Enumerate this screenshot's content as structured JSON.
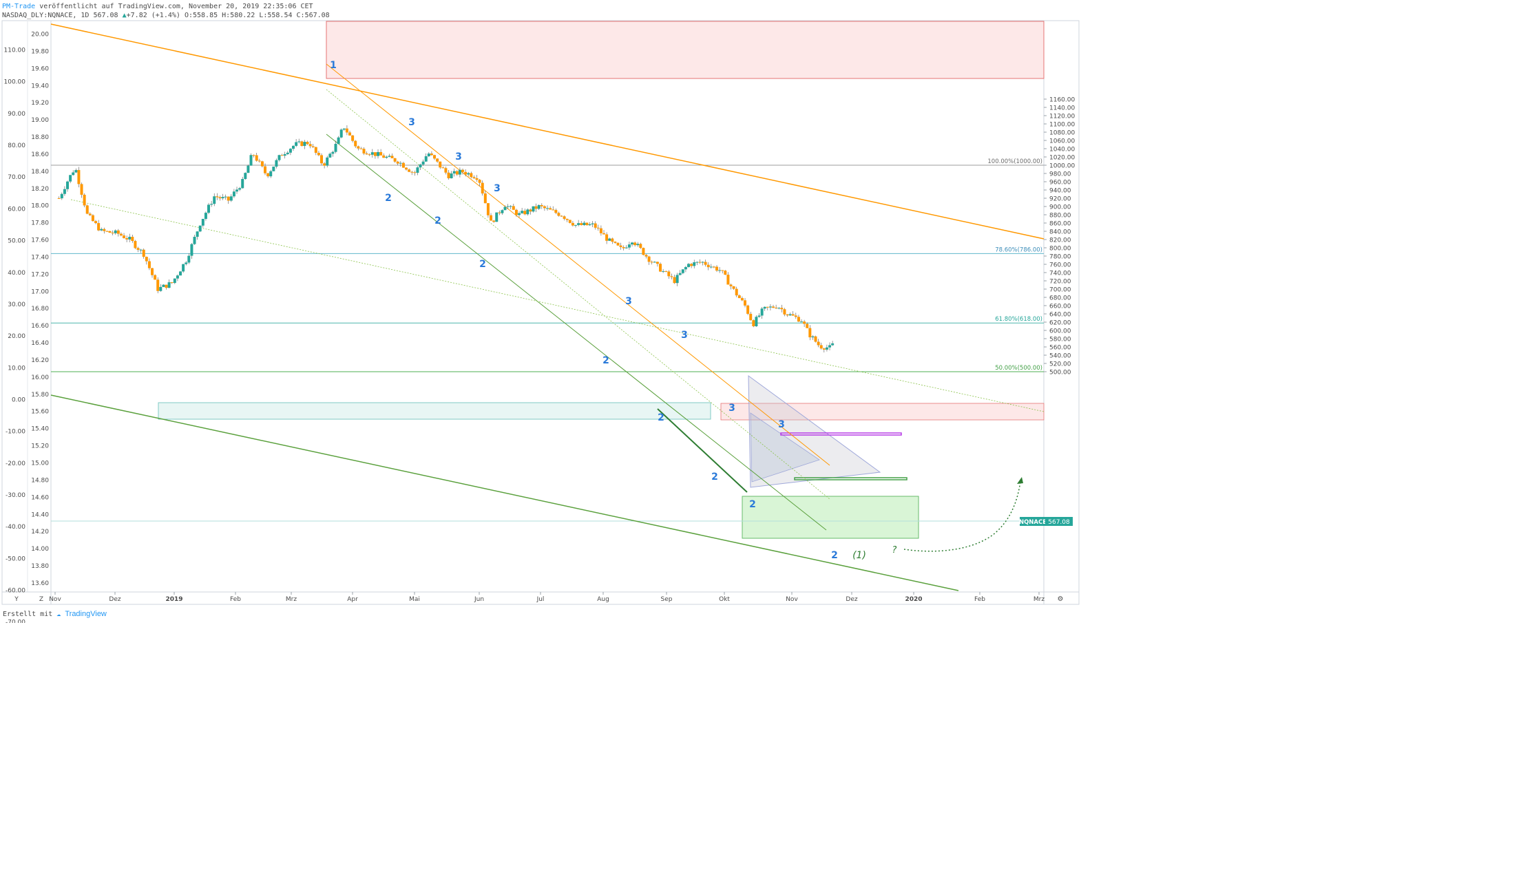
{
  "header": {
    "author": "PM-Trade",
    "published": "veröffentlicht auf TradingView.com, November 20, 2019 22:35:06 CET",
    "symbol_line": "NASDAQ_DLY:NQNACE, 1D 567.08",
    "change": "+7.82 (+1.4%)",
    "ohlc": "O:558.85 H:580.22 L:558.54 C:567.08"
  },
  "footer": {
    "created_with": "Erstellt mit",
    "brand": "TradingView"
  },
  "colors": {
    "bull": "#26a69a",
    "bear": "#ff9800",
    "channel_orange": "#ff9800",
    "channel_green": "#5aa03c",
    "wave_label": "#2979d9",
    "red_zone": "#e57373",
    "green_zone": "#66bb6a",
    "teal_zone": "#80cbc4",
    "fib_line": "#4db6ac",
    "purple": "#b73be6"
  },
  "chart_data": {
    "type": "candlestick",
    "symbol": "NQNACE",
    "last_price_label": "567.08",
    "x_labels": [
      "Nov",
      "Dez",
      "2019",
      "Feb",
      "Mrz",
      "Apr",
      "Mai",
      "Jun",
      "Jul",
      "Aug",
      "Sep",
      "Okt",
      "Nov",
      "Dez",
      "2020",
      "Feb",
      "Mrz"
    ],
    "y_right": {
      "ticks": [
        "1160.00",
        "1140.00",
        "1120.00",
        "1100.00",
        "1080.00",
        "1060.00",
        "1040.00",
        "1020.00",
        "1000.00",
        "980.00",
        "960.00",
        "940.00",
        "920.00",
        "900.00",
        "880.00",
        "860.00",
        "840.00",
        "820.00",
        "800.00",
        "780.00",
        "760.00",
        "740.00",
        "720.00",
        "700.00",
        "680.00",
        "660.00",
        "640.00",
        "620.00",
        "600.00",
        "580.00",
        "560.00",
        "540.00",
        "520.00",
        "500.00"
      ],
      "range": [
        485,
        1170
      ]
    },
    "y_left_outer": {
      "ticks": [
        "110.00",
        "100.00",
        "90.00",
        "80.00",
        "70.00",
        "60.00",
        "50.00",
        "40.00",
        "30.00",
        "20.00",
        "10.00",
        "0.00",
        "-10.00",
        "-20.00",
        "-30.00",
        "-40.00",
        "-50.00",
        "-60.00",
        "-70.00"
      ]
    },
    "y_left_inner": {
      "ticks": [
        "20.00",
        "19.80",
        "19.60",
        "19.40",
        "19.20",
        "19.00",
        "18.80",
        "18.60",
        "18.40",
        "18.20",
        "18.00",
        "17.80",
        "17.60",
        "17.40",
        "17.20",
        "17.00",
        "16.80",
        "16.60",
        "16.40",
        "16.20",
        "16.00",
        "15.80",
        "15.60",
        "15.40",
        "15.20",
        "15.00",
        "14.80",
        "14.60",
        "14.40",
        "14.20",
        "14.00",
        "13.80",
        "13.60"
      ]
    },
    "fib_levels": [
      {
        "label": "100.00%(1000.00)",
        "value": 1000
      },
      {
        "label": "78.60%(786.00)",
        "value": 786
      },
      {
        "label": "61.80%(618.00)",
        "value": 618
      },
      {
        "label": "50.00%(500.00)",
        "value": 500
      }
    ],
    "wave_labels": [
      "1",
      "3",
      "3",
      "3",
      "3",
      "3",
      "3",
      "3",
      "2",
      "2",
      "2",
      "2",
      "2",
      "2",
      "2",
      "2",
      "2"
    ],
    "annotations": [
      "(1)",
      "?"
    ],
    "close_path": [
      {
        "date": "2018-11-01",
        "close": 920
      },
      {
        "date": "2018-11-05",
        "close": 960
      },
      {
        "date": "2018-11-09",
        "close": 995
      },
      {
        "date": "2018-11-15",
        "close": 880
      },
      {
        "date": "2018-11-22",
        "close": 840
      },
      {
        "date": "2018-11-30",
        "close": 835
      },
      {
        "date": "2018-12-06",
        "close": 820
      },
      {
        "date": "2018-12-13",
        "close": 785
      },
      {
        "date": "2018-12-20",
        "close": 700
      },
      {
        "date": "2018-12-27",
        "close": 715
      },
      {
        "date": "2019-01-03",
        "close": 770
      },
      {
        "date": "2019-01-10",
        "close": 860
      },
      {
        "date": "2019-01-17",
        "close": 925
      },
      {
        "date": "2019-01-24",
        "close": 915
      },
      {
        "date": "2019-01-31",
        "close": 960
      },
      {
        "date": "2019-02-05",
        "close": 1030
      },
      {
        "date": "2019-02-12",
        "close": 975
      },
      {
        "date": "2019-02-19",
        "close": 1025
      },
      {
        "date": "2019-02-26",
        "close": 1050
      },
      {
        "date": "2019-03-05",
        "close": 1055
      },
      {
        "date": "2019-03-12",
        "close": 1000
      },
      {
        "date": "2019-03-19",
        "close": 1055
      },
      {
        "date": "2019-03-22",
        "close": 1095
      },
      {
        "date": "2019-03-29",
        "close": 1040
      },
      {
        "date": "2019-04-08",
        "close": 1025
      },
      {
        "date": "2019-04-18",
        "close": 1010
      },
      {
        "date": "2019-04-26",
        "close": 980
      },
      {
        "date": "2019-05-03",
        "close": 1030
      },
      {
        "date": "2019-05-13",
        "close": 975
      },
      {
        "date": "2019-05-20",
        "close": 985
      },
      {
        "date": "2019-05-28",
        "close": 970
      },
      {
        "date": "2019-06-03",
        "close": 860
      },
      {
        "date": "2019-06-10",
        "close": 905
      },
      {
        "date": "2019-06-17",
        "close": 880
      },
      {
        "date": "2019-06-27",
        "close": 900
      },
      {
        "date": "2019-07-08",
        "close": 880
      },
      {
        "date": "2019-07-15",
        "close": 855
      },
      {
        "date": "2019-07-24",
        "close": 855
      },
      {
        "date": "2019-08-01",
        "close": 815
      },
      {
        "date": "2019-08-07",
        "close": 795
      },
      {
        "date": "2019-08-12",
        "close": 820
      },
      {
        "date": "2019-08-20",
        "close": 775
      },
      {
        "date": "2019-08-28",
        "close": 740
      },
      {
        "date": "2019-09-02",
        "close": 720
      },
      {
        "date": "2019-09-09",
        "close": 760
      },
      {
        "date": "2019-09-16",
        "close": 765
      },
      {
        "date": "2019-09-25",
        "close": 745
      },
      {
        "date": "2019-10-01",
        "close": 700
      },
      {
        "date": "2019-10-07",
        "close": 660
      },
      {
        "date": "2019-10-11",
        "close": 615
      },
      {
        "date": "2019-10-16",
        "close": 650
      },
      {
        "date": "2019-10-23",
        "close": 660
      },
      {
        "date": "2019-10-28",
        "close": 640
      },
      {
        "date": "2019-11-04",
        "close": 625
      },
      {
        "date": "2019-11-08",
        "close": 590
      },
      {
        "date": "2019-11-13",
        "close": 562
      },
      {
        "date": "2019-11-18",
        "close": 558
      },
      {
        "date": "2019-11-20",
        "close": 567
      }
    ]
  }
}
